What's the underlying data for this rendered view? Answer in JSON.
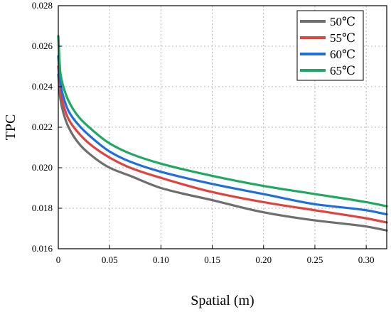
{
  "chart_data": {
    "type": "line",
    "title": "",
    "xlabel": "Spatial (m)",
    "ylabel": "TPC",
    "xlim": [
      0,
      0.32
    ],
    "ylim": [
      0.016,
      0.028
    ],
    "xticks": [
      0,
      0.05,
      0.1,
      0.15,
      0.2,
      0.25,
      0.3
    ],
    "xtick_labels": [
      "0",
      "0.05",
      "0.10",
      "0.15",
      "0.20",
      "0.25",
      "0.30"
    ],
    "yticks": [
      0.016,
      0.018,
      0.02,
      0.022,
      0.024,
      0.026,
      0.028
    ],
    "ytick_labels": [
      "0.016",
      "0.018",
      "0.020",
      "0.022",
      "0.024",
      "0.026",
      "0.028"
    ],
    "grid": true,
    "legend_position": "top-right",
    "series": [
      {
        "name": "50℃",
        "color": "#6e6e6e",
        "x": [
          0,
          0.002,
          0.005,
          0.01,
          0.02,
          0.03,
          0.05,
          0.07,
          0.1,
          0.15,
          0.2,
          0.25,
          0.3,
          0.32
        ],
        "y": [
          0.0246,
          0.0234,
          0.0227,
          0.022,
          0.0212,
          0.0207,
          0.02,
          0.0196,
          0.019,
          0.0184,
          0.0178,
          0.0174,
          0.0171,
          0.0169
        ]
      },
      {
        "name": "55℃",
        "color": "#e0423d",
        "x": [
          0,
          0.002,
          0.005,
          0.01,
          0.02,
          0.03,
          0.05,
          0.07,
          0.1,
          0.15,
          0.2,
          0.25,
          0.3,
          0.32
        ],
        "y": [
          0.025,
          0.0238,
          0.0231,
          0.0224,
          0.0217,
          0.0212,
          0.0205,
          0.02,
          0.0195,
          0.0188,
          0.0183,
          0.0179,
          0.0175,
          0.0173
        ]
      },
      {
        "name": "60℃",
        "color": "#1f6ee0",
        "x": [
          0,
          0.002,
          0.005,
          0.01,
          0.02,
          0.03,
          0.05,
          0.07,
          0.1,
          0.15,
          0.2,
          0.25,
          0.3,
          0.32
        ],
        "y": [
          0.0255,
          0.0242,
          0.0235,
          0.0228,
          0.0221,
          0.0216,
          0.0208,
          0.0203,
          0.0198,
          0.0192,
          0.0187,
          0.0182,
          0.0179,
          0.0177
        ]
      },
      {
        "name": "65℃",
        "color": "#1fa862",
        "x": [
          0,
          0.002,
          0.005,
          0.01,
          0.02,
          0.03,
          0.05,
          0.07,
          0.1,
          0.15,
          0.2,
          0.25,
          0.3,
          0.32
        ],
        "y": [
          0.0265,
          0.0247,
          0.024,
          0.0233,
          0.0225,
          0.022,
          0.0212,
          0.0207,
          0.0202,
          0.0196,
          0.0191,
          0.0187,
          0.0183,
          0.0181
        ]
      }
    ]
  }
}
